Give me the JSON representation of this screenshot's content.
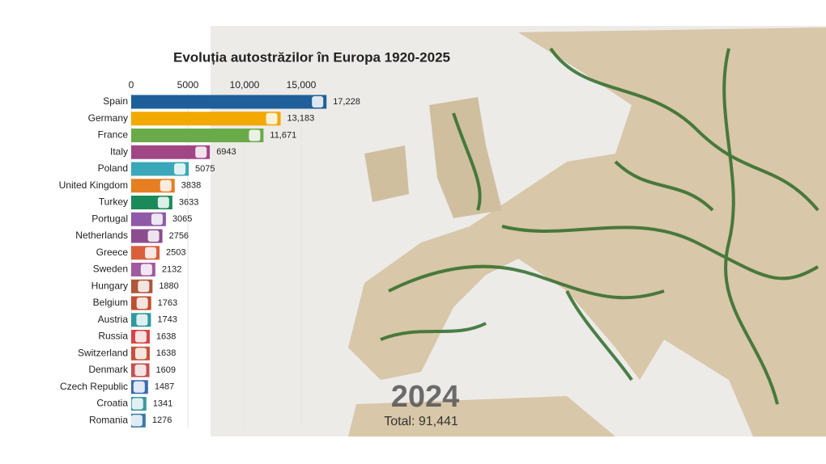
{
  "chart_data": {
    "type": "bar",
    "orientation": "horizontal",
    "title": "Evoluția autostrăzilor în Europa 1920-2025",
    "categories": [
      "Spain",
      "Germany",
      "France",
      "Italy",
      "Poland",
      "United Kingdom",
      "Turkey",
      "Portugal",
      "Netherlands",
      "Greece",
      "Sweden",
      "Hungary",
      "Belgium",
      "Austria",
      "Russia",
      "Switzerland",
      "Denmark",
      "Czech Republic",
      "Croatia",
      "Romania"
    ],
    "values": [
      17228,
      13183,
      11671,
      6943,
      5075,
      3838,
      3633,
      3065,
      2756,
      2503,
      2132,
      1880,
      1763,
      1743,
      1638,
      1638,
      1609,
      1487,
      1341,
      1276
    ],
    "value_labels": [
      "17,228",
      "13,183",
      "11,671",
      "6943",
      "5075",
      "3838",
      "3633",
      "3065",
      "2756",
      "2503",
      "2132",
      "1880",
      "1763",
      "1743",
      "1638",
      "1638",
      "1609",
      "1487",
      "1341",
      "1276"
    ],
    "colors": [
      "#1f5f99",
      "#f2a900",
      "#6aaa4b",
      "#a04685",
      "#3aa8b8",
      "#e67e22",
      "#1a8a5a",
      "#8e5aa8",
      "#8b4d8e",
      "#d9603b",
      "#a05ba0",
      "#b0563a",
      "#bf4e2e",
      "#2e9aa0",
      "#d64545",
      "#c4523a",
      "#c45050",
      "#3a6ab0",
      "#3a9aa0",
      "#3a7ab0"
    ],
    "xlim": [
      0,
      20000
    ],
    "xticks": [
      0,
      5000,
      {
        "value": 10000,
        "label": "10,000"
      },
      {
        "value": 15000,
        "label": "15,000"
      }
    ],
    "grid": true,
    "year": "2024",
    "total_label": "Total: 91,441"
  }
}
